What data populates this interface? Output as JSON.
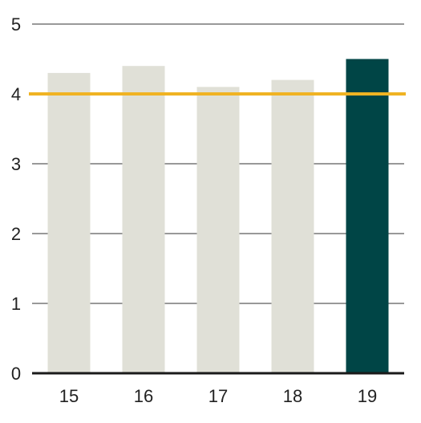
{
  "chart_data": {
    "type": "bar",
    "categories": [
      "15",
      "16",
      "17",
      "18",
      "19"
    ],
    "values": [
      4.3,
      4.4,
      4.1,
      4.2,
      4.5
    ],
    "ylim": [
      0,
      5
    ],
    "yticks": [
      "0",
      "1",
      "2",
      "3",
      "4",
      "5"
    ],
    "reference_line": 4,
    "grid": true,
    "legend": "none",
    "title": "",
    "xlabel": "",
    "ylabel": "",
    "colors": {
      "bar": "#e0e0d7",
      "highlight_bar": "#004546",
      "reference_line": "#f0b323",
      "grid": "#333333",
      "axis": "#1a1a1a"
    },
    "highlight_index": 4
  }
}
